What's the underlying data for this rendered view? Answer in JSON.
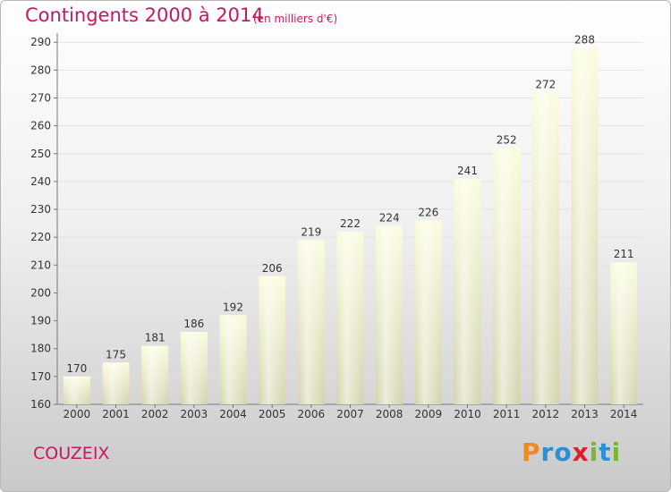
{
  "chart_data": {
    "type": "bar",
    "title": "Contingents 2000 à 2014",
    "subtitle": "(en milliers d'€)",
    "categories": [
      "2000",
      "2001",
      "2002",
      "2003",
      "2004",
      "2005",
      "2006",
      "2007",
      "2008",
      "2009",
      "2010",
      "2011",
      "2012",
      "2013",
      "2014"
    ],
    "values": [
      170,
      175,
      181,
      186,
      192,
      206,
      219,
      222,
      224,
      226,
      241,
      252,
      272,
      288,
      211
    ],
    "ylim": [
      160,
      292
    ],
    "yticks": [
      160,
      170,
      180,
      190,
      200,
      210,
      220,
      230,
      240,
      250,
      260,
      270,
      280,
      290
    ],
    "grid": true,
    "bar_color": "#f5f5c8"
  },
  "commune": "COUZEIX",
  "logo": {
    "letters": [
      {
        "ch": "P",
        "color": "#f08a1a"
      },
      {
        "ch": "r",
        "color": "#2a8fd6"
      },
      {
        "ch": "o",
        "color": "#2a8fd6"
      },
      {
        "ch": "x",
        "color": "#d81f2a"
      },
      {
        "ch": "i",
        "color": "#78b82a"
      },
      {
        "ch": "t",
        "color": "#2a8fd6"
      },
      {
        "ch": "i",
        "color": "#78b82a"
      }
    ]
  },
  "colors": {
    "accent": "#c8175e"
  }
}
